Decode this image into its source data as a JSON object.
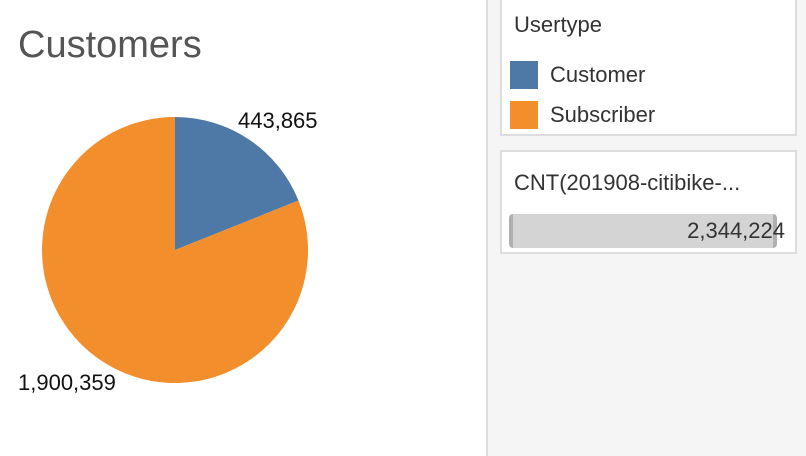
{
  "view": {
    "title": "Customers"
  },
  "legend": {
    "title": "Usertype",
    "items": [
      {
        "label": "Customer",
        "color": "#4e79a7"
      },
      {
        "label": "Subscriber",
        "color": "#f28e2b"
      }
    ]
  },
  "measure": {
    "title": "CNT(201908-citibike-...",
    "value": "2,344,224"
  },
  "chart_data": {
    "type": "pie",
    "title": "Customers",
    "categories": [
      "Customer",
      "Subscriber"
    ],
    "values": [
      443865,
      1900359
    ],
    "labels": [
      "443,865",
      "1,900,359"
    ],
    "colors": [
      "#4e79a7",
      "#f28e2b"
    ],
    "legend_title": "Usertype",
    "legend_position": "right"
  }
}
